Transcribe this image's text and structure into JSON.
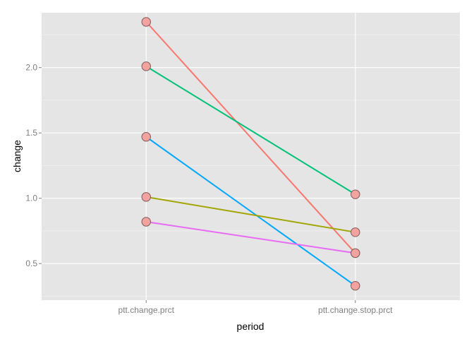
{
  "chart_data": {
    "type": "line",
    "xlabel": "period",
    "ylabel": "change",
    "categories": [
      "ptt.change.prct",
      "ptt.change.stop.prct"
    ],
    "ylim": [
      0.22,
      2.42
    ],
    "yticks": [
      0.5,
      1.0,
      1.5,
      2.0
    ],
    "ytick_labels": [
      "0.5",
      "1.0",
      "1.5",
      "2.0"
    ],
    "grid": true,
    "legend": "none",
    "panel_color": "#e5e5e5",
    "grid_color": "#ffffff",
    "point_fill": "#f2a3a0",
    "point_stroke": "#7f5a5a",
    "series": [
      {
        "values": [
          2.35,
          0.58
        ],
        "color": "#f8766d"
      },
      {
        "values": [
          2.01,
          1.03
        ],
        "color": "#00c27a"
      },
      {
        "values": [
          1.47,
          0.33
        ],
        "color": "#00a9ff"
      },
      {
        "values": [
          1.01,
          0.74
        ],
        "color": "#a3a500"
      },
      {
        "values": [
          0.82,
          0.58
        ],
        "color": "#e76bf3"
      }
    ]
  }
}
